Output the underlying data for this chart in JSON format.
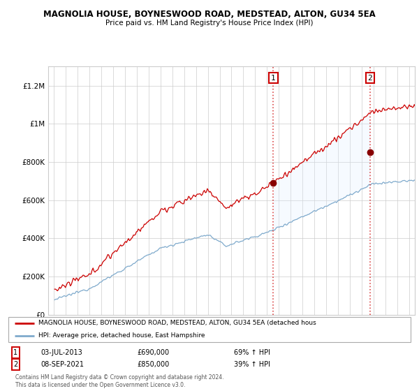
{
  "title": "MAGNOLIA HOUSE, BOYNESWOOD ROAD, MEDSTEAD, ALTON, GU34 5EA",
  "subtitle": "Price paid vs. HM Land Registry's House Price Index (HPI)",
  "ylabel_ticks": [
    "£0",
    "£200K",
    "£400K",
    "£600K",
    "£800K",
    "£1M",
    "£1.2M"
  ],
  "ytick_values": [
    0,
    200000,
    400000,
    600000,
    800000,
    1000000,
    1200000
  ],
  "ylim": [
    0,
    1300000
  ],
  "sale1_date": "03-JUL-2013",
  "sale1_price": 690000,
  "sale1_hpi": "69% ↑ HPI",
  "sale2_date": "08-SEP-2021",
  "sale2_price": 850000,
  "sale2_hpi": "39% ↑ HPI",
  "legend_label1": "MAGNOLIA HOUSE, BOYNESWOOD ROAD, MEDSTEAD, ALTON, GU34 5EA (detached hous",
  "legend_label2": "HPI: Average price, detached house, East Hampshire",
  "footer": "Contains HM Land Registry data © Crown copyright and database right 2024.\nThis data is licensed under the Open Government Licence v3.0.",
  "line1_color": "#cc0000",
  "line2_color": "#7faacc",
  "shade_color": "#ddeeff",
  "grid_color": "#cccccc",
  "x_start_year": 1995,
  "x_end_year": 2025
}
